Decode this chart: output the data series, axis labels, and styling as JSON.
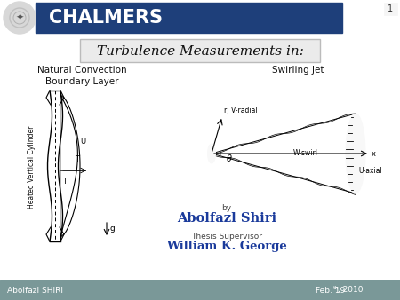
{
  "title": "Turbulence Measurements in:",
  "header_text": "CHALMERS",
  "header_bg": "#1e3f7a",
  "header_text_color": "#ffffff",
  "slide_bg": "#ffffff",
  "footer_bg": "#7a9898",
  "footer_left": "Abolfazl SHIRI",
  "footer_right": "Feb. 19",
  "footer_right_sup": "th",
  "footer_right_year": ", 2010",
  "footer_text_color": "#ffffff",
  "slide_number": "1",
  "title_box_bg": "#ebebeb",
  "title_box_border": "#bbbbbb",
  "left_label": "Natural Convection\nBoundary Layer",
  "right_label": "Swirling Jet",
  "by_text": "by",
  "author": "Abolfazl Shiri",
  "supervisor_label": "Thesis Supervisor",
  "supervisor": "William K. George",
  "author_color": "#1a3a9b",
  "supervisor_color": "#1a3a9b",
  "cylinder_label": "Heated Vertical Cylinder",
  "u_label": "U",
  "t_label": "T",
  "g_label": "g",
  "r_label": "r, V-radial",
  "theta_label": "θ",
  "wswirl_label": "W-swirl",
  "uaxial_label": "U-axial",
  "x_label": "x"
}
